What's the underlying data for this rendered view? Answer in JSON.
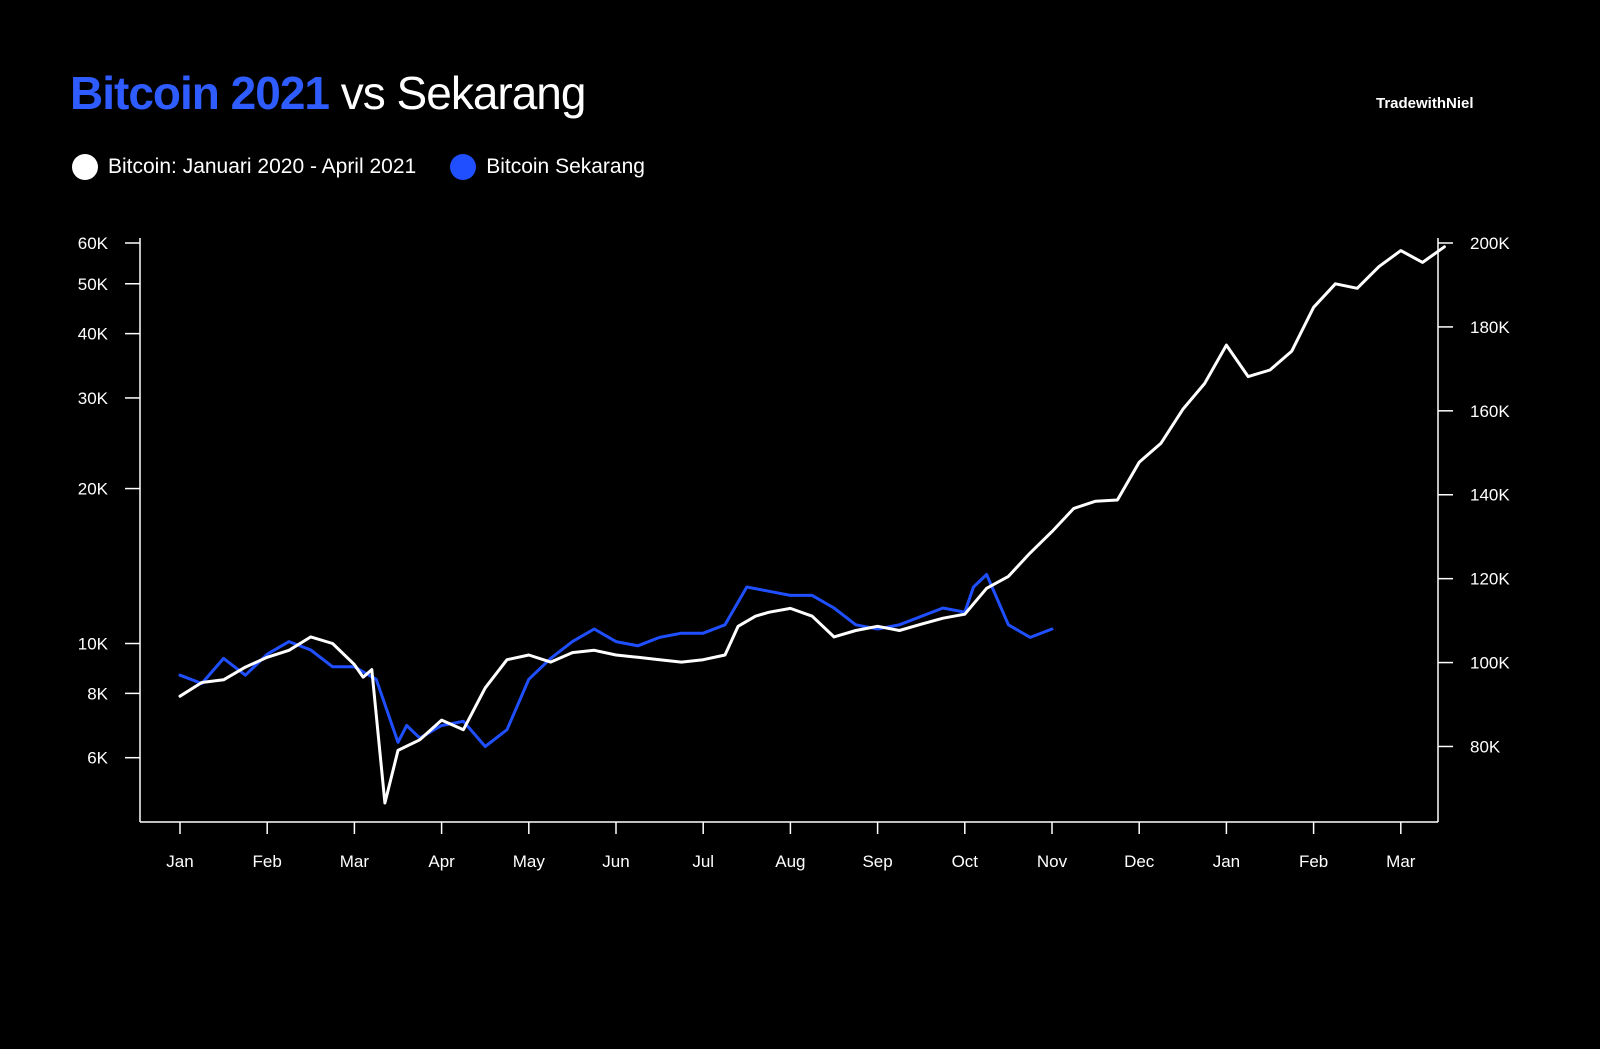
{
  "header": {
    "title_accent": "Bitcoin 2021",
    "title_rest": "vs Sekarang",
    "brand": "TradewithNiel"
  },
  "legend": [
    {
      "label": "Bitcoin: Januari 2020 - April 2021",
      "color": "#ffffff"
    },
    {
      "label": "Bitcoin Sekarang",
      "color": "#1f4fff"
    }
  ],
  "chart_data": {
    "type": "line",
    "title": "Bitcoin 2021 vs Sekarang",
    "x_ticks": [
      "Jan",
      "Feb",
      "Mar",
      "Apr",
      "May",
      "Jun",
      "Jul",
      "Aug",
      "Sep",
      "Oct",
      "Nov",
      "Dec",
      "Jan",
      "Feb",
      "Mar"
    ],
    "y_left": {
      "scale": "log",
      "range": [
        4500,
        60000
      ],
      "ticks": [
        60000,
        50000,
        40000,
        30000,
        20000,
        10000,
        8000,
        6000
      ],
      "tick_labels": [
        "60K",
        "50K",
        "40K",
        "30K",
        "20K",
        "10K",
        "8K",
        "6K"
      ]
    },
    "y_right": {
      "scale": "linear",
      "range": [
        62000,
        200000
      ],
      "ticks": [
        200000,
        180000,
        160000,
        140000,
        120000,
        100000,
        80000
      ],
      "tick_labels": [
        "200K",
        "180K",
        "160K",
        "140K",
        "120K",
        "100K",
        "80K"
      ]
    },
    "series": [
      {
        "name": "Bitcoin: Januari 2020 - April 2021",
        "color": "#ffffff",
        "axis": "left",
        "x": [
          0,
          0.25,
          0.5,
          0.75,
          1,
          1.25,
          1.5,
          1.75,
          2,
          2.1,
          2.2,
          2.35,
          2.5,
          2.75,
          3,
          3.25,
          3.5,
          3.75,
          4,
          4.25,
          4.5,
          4.75,
          5,
          5.25,
          5.5,
          5.75,
          6,
          6.25,
          6.4,
          6.6,
          6.75,
          7,
          7.25,
          7.5,
          7.75,
          8,
          8.25,
          8.5,
          8.75,
          9,
          9.25,
          9.5,
          9.75,
          10,
          10.25,
          10.5,
          10.75,
          11,
          11.25,
          11.5,
          11.75,
          12,
          12.25,
          12.5,
          12.75,
          13,
          13.25,
          13.5,
          13.75,
          14,
          14.25,
          14.5
        ],
        "y": [
          7900,
          8400,
          8500,
          9000,
          9400,
          9700,
          10300,
          10000,
          9100,
          8600,
          8900,
          4900,
          6200,
          6500,
          7100,
          6800,
          8200,
          9300,
          9500,
          9200,
          9600,
          9700,
          9500,
          9400,
          9300,
          9200,
          9300,
          9500,
          10800,
          11300,
          11500,
          11700,
          11300,
          10300,
          10600,
          10800,
          10600,
          10900,
          11200,
          11400,
          12800,
          13500,
          15000,
          16500,
          18300,
          18900,
          19000,
          22500,
          24500,
          28500,
          32000,
          38000,
          33000,
          34000,
          37000,
          45000,
          50000,
          49000,
          54000,
          58000,
          55000,
          59000
        ]
      },
      {
        "name": "Bitcoin Sekarang",
        "color": "#1f4fff",
        "axis": "right",
        "x": [
          0,
          0.25,
          0.5,
          0.75,
          1,
          1.25,
          1.5,
          1.75,
          2,
          2.25,
          2.5,
          2.6,
          2.75,
          3,
          3.25,
          3.5,
          3.75,
          4,
          4.25,
          4.5,
          4.75,
          5,
          5.25,
          5.5,
          5.75,
          6,
          6.25,
          6.5,
          6.75,
          7,
          7.25,
          7.5,
          7.75,
          8,
          8.25,
          8.5,
          8.75,
          9,
          9.1,
          9.25,
          9.5,
          9.75,
          10
        ],
        "y": [
          97000,
          95000,
          101000,
          97000,
          102000,
          105000,
          103000,
          99000,
          99000,
          96000,
          81000,
          85000,
          82000,
          85000,
          86000,
          80000,
          84000,
          96000,
          101000,
          105000,
          108000,
          105000,
          104000,
          106000,
          107000,
          107000,
          109000,
          118000,
          117000,
          116000,
          116000,
          113000,
          109000,
          108000,
          109000,
          111000,
          113000,
          112000,
          118000,
          121000,
          109000,
          106000,
          108000
        ]
      }
    ]
  }
}
